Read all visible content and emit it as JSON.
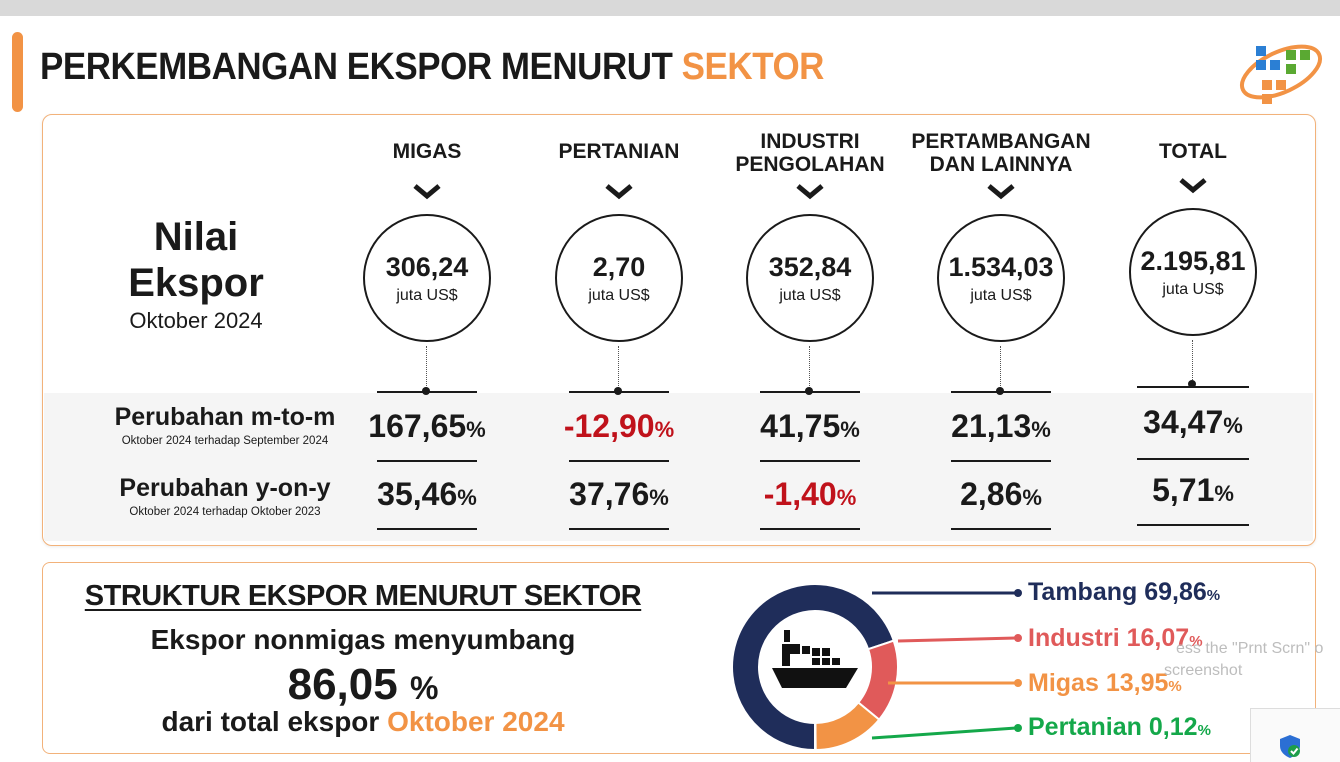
{
  "title": {
    "main": "PERKEMBANGAN EKSPOR MENURUT",
    "highlight": "SEKTOR"
  },
  "colors": {
    "accent": "#f29345",
    "negative": "#c0121b",
    "tambang": "#1f2d5a",
    "industri": "#e05a5a",
    "migas": "#f29345",
    "pertanian": "#14a84a"
  },
  "nilai": {
    "line1": "Nilai",
    "line2": "Ekspor",
    "period": "Oktober 2024"
  },
  "unit": "juta US$",
  "pct_sign": "%",
  "rows": {
    "mtm": {
      "label": "Perubahan m-to-m",
      "detail": "Oktober 2024 terhadap September 2024"
    },
    "yoy": {
      "label": "Perubahan y-on-y",
      "detail": "Oktober 2024 terhadap Oktober 2023"
    }
  },
  "sectors": [
    {
      "name_line1": "MIGAS",
      "name_line2": "",
      "value": "306,24",
      "mtm": "167,65",
      "yoy": "35,46"
    },
    {
      "name_line1": "PERTANIAN",
      "name_line2": "",
      "value": "2,70",
      "mtm": "-12,90",
      "yoy": "37,76"
    },
    {
      "name_line1": "INDUSTRI",
      "name_line2": "PENGOLAHAN",
      "value": "352,84",
      "mtm": "41,75",
      "yoy": "-1,40"
    },
    {
      "name_line1": "PERTAMBANGAN",
      "name_line2": "DAN LAINNYA",
      "value": "1.534,03",
      "mtm": "21,13",
      "yoy": "2,86"
    },
    {
      "name_line1": "TOTAL",
      "name_line2": "",
      "value": "2.195,81",
      "mtm": "34,47",
      "yoy": "5,71"
    }
  ],
  "struktur": {
    "title": "STRUKTUR EKSPOR MENURUT SEKTOR",
    "line1": "Ekspor nonmigas menyumbang",
    "big_value": "86,05",
    "big_unit": "%",
    "line3_prefix": "dari total ekspor",
    "line3_highlight": "Oktober 2024"
  },
  "chart_data": {
    "type": "pie",
    "categories": [
      "Tambang",
      "Industri",
      "Migas",
      "Pertanian"
    ],
    "values": [
      69.86,
      16.07,
      13.95,
      0.12
    ],
    "labels": [
      "69,86",
      "16,07",
      "13,95",
      "0,12"
    ],
    "colors": [
      "#1f2d5a",
      "#e05a5a",
      "#f29345",
      "#14a84a"
    ]
  },
  "icons": {
    "center": "cargo-ship-icon",
    "logo": "bps-logo",
    "security": "shield-check-icon"
  },
  "overlay": {
    "line1": "ess the \"Prnt Scrn\" o",
    "line2": "screenshot"
  }
}
